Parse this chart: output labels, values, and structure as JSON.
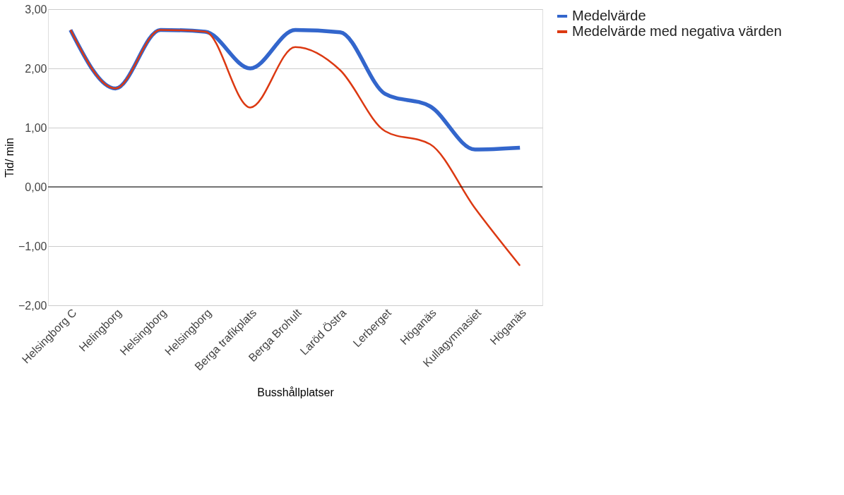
{
  "chart_data": {
    "type": "line",
    "xlabel": "Busshållplatser",
    "ylabel": "Tid/ min",
    "categories": [
      "Helsingborg C",
      "Helingborg",
      "Helsingborg",
      "Helsingborg",
      "Berga trafikplats",
      "Berga Brohult",
      "Laröd Östra",
      "Lerberget",
      "Höganäs",
      "Kullagymnasiet",
      "Höganäs"
    ],
    "series": [
      {
        "name": "Medelvärde",
        "color": "#3366cc",
        "values": [
          2.65,
          1.66,
          2.65,
          2.62,
          2.0,
          2.65,
          2.61,
          1.57,
          1.36,
          0.63,
          0.66
        ]
      },
      {
        "name": "Medelvärde med negativa värden",
        "color": "#dc3912",
        "values": [
          2.65,
          1.66,
          2.65,
          2.62,
          1.34,
          2.36,
          1.97,
          0.94,
          0.72,
          -0.36,
          -1.33
        ]
      }
    ],
    "ylim": [
      -2,
      3
    ],
    "yticks": [
      {
        "value": -2,
        "label": "−2,00"
      },
      {
        "value": -1,
        "label": "−1,00"
      },
      {
        "value": 0,
        "label": "0,00"
      },
      {
        "value": 1,
        "label": "1,00"
      },
      {
        "value": 2,
        "label": "2,00"
      },
      {
        "value": 3,
        "label": "3,00"
      }
    ],
    "ref_lines": [
      {
        "axis": "y",
        "value": 0,
        "color": "#000000"
      }
    ],
    "grid": "y",
    "legend": "top right",
    "marker": "none",
    "line_style": "solid"
  }
}
